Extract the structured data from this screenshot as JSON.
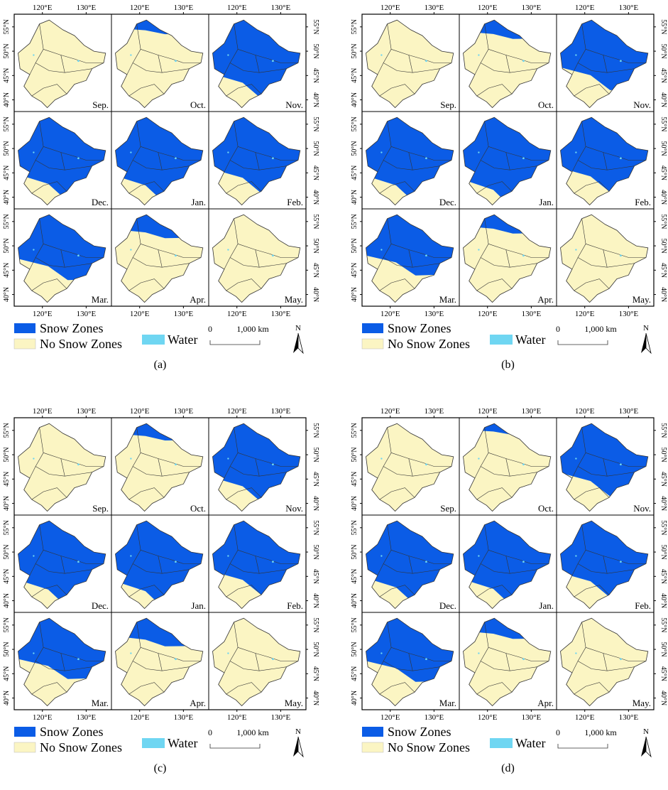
{
  "colors": {
    "snow": "#0b5ce6",
    "no_snow": "#fbf5c3",
    "water": "#6fd6f2",
    "boundary": "#333333",
    "frame": "#000000"
  },
  "axis_labels": {
    "top": [
      "120°E",
      "130°E"
    ],
    "bottom": [
      "120°E",
      "130°E"
    ],
    "right": [
      "55°N",
      "50°N",
      "45°N",
      "40°N"
    ],
    "left": [
      "55°N",
      "50°N",
      "45°N",
      "40°N"
    ]
  },
  "months": [
    "Sep.",
    "Oct.",
    "Nov.",
    "Dec.",
    "Jan.",
    "Feb.",
    "Mar.",
    "Apr.",
    "May."
  ],
  "legend": {
    "snow_label": "Snow Zones",
    "no_snow_label": "No Snow Zones",
    "water_label": "Water",
    "scale_zero": "0",
    "scale_value": "1,000 km",
    "north_label": "N"
  },
  "figures": [
    {
      "caption": "(a)",
      "snow_fraction": [
        0.0,
        0.15,
        0.85,
        0.9,
        0.92,
        0.82,
        0.7,
        0.25,
        0.0
      ]
    },
    {
      "caption": "(b)",
      "snow_fraction": [
        0.0,
        0.2,
        0.75,
        0.92,
        0.98,
        0.8,
        0.65,
        0.2,
        0.0
      ]
    },
    {
      "caption": "(c)",
      "snow_fraction": [
        0.0,
        0.18,
        0.85,
        0.93,
        0.95,
        0.8,
        0.65,
        0.3,
        0.0
      ]
    },
    {
      "caption": "(d)",
      "snow_fraction": [
        0.0,
        0.12,
        0.78,
        0.9,
        0.92,
        0.82,
        0.68,
        0.22,
        0.0
      ]
    }
  ]
}
